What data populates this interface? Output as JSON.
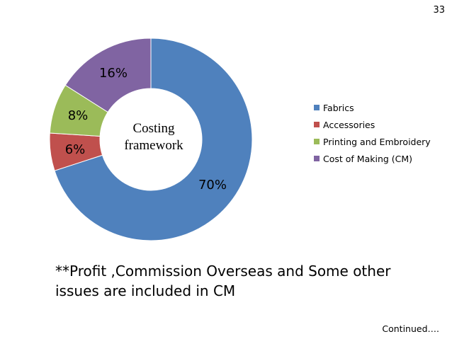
{
  "page_number": "33",
  "chart_data": {
    "type": "pie",
    "donut": true,
    "center_label": "Costing framework",
    "categories": [
      "Fabrics",
      "Accessories",
      "Printing and Embroidery",
      "Cost of Making (CM)"
    ],
    "values": [
      70,
      6,
      8,
      16
    ],
    "data_labels": [
      "70%",
      "6%",
      "8%",
      "16%"
    ],
    "colors": [
      "#4F81BD",
      "#C0504D",
      "#9BBB59",
      "#8064A2"
    ],
    "legend_position": "right"
  },
  "footnote": "**Profit ,Commission Overseas and Some other issues are included in CM",
  "continued": "Continued…."
}
